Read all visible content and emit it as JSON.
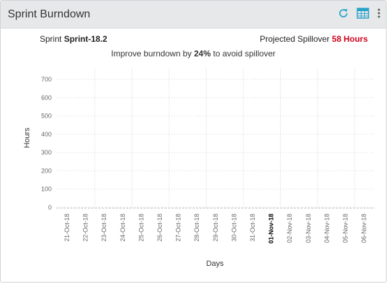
{
  "header": {
    "title": "Sprint Burndown",
    "icons": [
      "refresh-icon",
      "table-icon",
      "more-vertical-icon"
    ]
  },
  "summary": {
    "sprint_prefix": "Sprint",
    "sprint_name": "Sprint-18.2",
    "spillover_prefix": "Projected Spillover",
    "spillover_value": "58 Hours",
    "improve_prefix": "Improve burndown by",
    "improve_value": "24%",
    "improve_suffix": "to avoid spillover"
  },
  "colors": {
    "header_bg": "#e6e8ea",
    "accent": "#2aa3c9",
    "spillover_red": "#d0021b"
  },
  "chart_data": {
    "type": "line",
    "xlabel": "Days",
    "ylabel": "Hours",
    "ylim": [
      0,
      700
    ],
    "yticks": [
      0,
      100,
      200,
      300,
      400,
      500,
      600,
      700
    ],
    "categories": [
      "21-Oct-18",
      "22-Oct-18",
      "23-Oct-18",
      "24-Oct-18",
      "25-Oct-18",
      "26-Oct-18",
      "27-Oct-18",
      "28-Oct-18",
      "29-Oct-18",
      "30-Oct-18",
      "31-Oct-18",
      "01-Nov-18",
      "02-Nov-18",
      "03-Nov-18",
      "04-Nov-18",
      "05-Nov-18",
      "06-Nov-18"
    ],
    "highlighted_category": "01-Nov-18",
    "series": [],
    "grid": true
  }
}
